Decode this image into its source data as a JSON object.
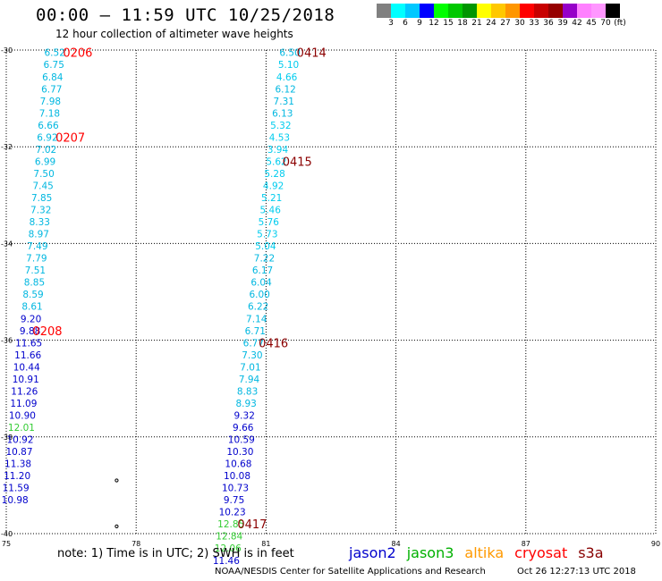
{
  "title": "00:00 – 11:59 UTC 10/25/2018",
  "subtitle": "12 hour collection of altimeter wave heights",
  "note": "note:  1) Time is in UTC;  2) SWH is in feet",
  "credit": "NOAA/NESDIS Center for Satellite Applications and Research",
  "timestamp": "Oct 26 12:27:13 UTC 2018",
  "colorbar": {
    "colors": [
      "#808080",
      "#00ffff",
      "#00c8ff",
      "#0000ff",
      "#00ff00",
      "#00c800",
      "#009600",
      "#ffff00",
      "#ffc800",
      "#ff9600",
      "#ff0000",
      "#c80000",
      "#960000",
      "#9600c8",
      "#ff80ff",
      "#ff96ff",
      "#000000"
    ],
    "labels": [
      "3",
      "6",
      "9",
      "12",
      "15",
      "18",
      "21",
      "24",
      "27",
      "30",
      "33",
      "36",
      "39",
      "42",
      "45",
      "70",
      "(ft)"
    ]
  },
  "legend": [
    {
      "name": "jason2",
      "color": "#0000cc"
    },
    {
      "name": "jason3",
      "color": "#00b000"
    },
    {
      "name": "altika",
      "color": "#ff9900"
    },
    {
      "name": "cryosat",
      "color": "#ff0000"
    },
    {
      "name": "s3a",
      "color": "#880000"
    }
  ],
  "chart_data": {
    "type": "scatter",
    "xlim": [
      75,
      90
    ],
    "ylim": [
      -40,
      -30
    ],
    "x_ticks": [
      "75",
      "78",
      "81",
      "84",
      "87",
      "90"
    ],
    "y_ticks": [
      "-30",
      "-32",
      "-34",
      "-36",
      "-38",
      "-40"
    ],
    "grid": true,
    "unit": "ft",
    "series": [
      {
        "name": "cryosat",
        "color": "#009acd",
        "points": [
          {
            "x": 76.12,
            "y": -30.05,
            "v": "6.52",
            "c": "#00b7e0"
          },
          {
            "x": 76.1,
            "y": -30.3,
            "v": "6.75",
            "c": "#00b7e0"
          },
          {
            "x": 76.07,
            "y": -30.55,
            "v": "6.84",
            "c": "#00b7e0"
          },
          {
            "x": 76.05,
            "y": -30.8,
            "v": "6.77",
            "c": "#00b7e0"
          },
          {
            "x": 76.02,
            "y": -31.05,
            "v": "7.98",
            "c": "#00b7e0"
          },
          {
            "x": 76.0,
            "y": -31.3,
            "v": "7.18",
            "c": "#00b7e0"
          },
          {
            "x": 75.97,
            "y": -31.55,
            "v": "6.66",
            "c": "#00b7e0"
          },
          {
            "x": 75.95,
            "y": -31.8,
            "v": "6.92",
            "c": "#00b7e0"
          },
          {
            "x": 75.92,
            "y": -32.05,
            "v": "7.02",
            "c": "#00b7e0"
          },
          {
            "x": 75.9,
            "y": -32.3,
            "v": "6.99",
            "c": "#00b7e0"
          },
          {
            "x": 75.87,
            "y": -32.55,
            "v": "7.50",
            "c": "#00b7e0"
          },
          {
            "x": 75.85,
            "y": -32.8,
            "v": "7.45",
            "c": "#00b7e0"
          },
          {
            "x": 75.82,
            "y": -33.05,
            "v": "7.85",
            "c": "#00b7e0"
          },
          {
            "x": 75.8,
            "y": -33.3,
            "v": "7.32",
            "c": "#00b7e0"
          },
          {
            "x": 75.77,
            "y": -33.55,
            "v": "8.33",
            "c": "#00b7e0"
          },
          {
            "x": 75.75,
            "y": -33.8,
            "v": "8.97",
            "c": "#00b7e0"
          },
          {
            "x": 75.72,
            "y": -34.05,
            "v": "7.49",
            "c": "#00b7e0"
          },
          {
            "x": 75.7,
            "y": -34.3,
            "v": "7.79",
            "c": "#00b7e0"
          },
          {
            "x": 75.67,
            "y": -34.55,
            "v": "7.51",
            "c": "#00b7e0"
          },
          {
            "x": 75.65,
            "y": -34.8,
            "v": "8.85",
            "c": "#00b7e0"
          },
          {
            "x": 75.62,
            "y": -35.05,
            "v": "8.59",
            "c": "#00b7e0"
          },
          {
            "x": 75.6,
            "y": -35.3,
            "v": "8.61",
            "c": "#00b7e0"
          },
          {
            "x": 75.57,
            "y": -35.55,
            "v": "9.20",
            "c": "#0000cc"
          },
          {
            "x": 75.55,
            "y": -35.8,
            "v": "9.88",
            "c": "#0000cc"
          },
          {
            "x": 75.52,
            "y": -36.05,
            "v": "11.65",
            "c": "#0000cc"
          },
          {
            "x": 75.5,
            "y": -36.3,
            "v": "11.66",
            "c": "#0000cc"
          },
          {
            "x": 75.47,
            "y": -36.55,
            "v": "10.44",
            "c": "#0000cc"
          },
          {
            "x": 75.45,
            "y": -36.8,
            "v": "10.91",
            "c": "#0000cc"
          },
          {
            "x": 75.42,
            "y": -37.05,
            "v": "11.26",
            "c": "#0000cc"
          },
          {
            "x": 75.4,
            "y": -37.3,
            "v": "11.09",
            "c": "#0000cc"
          },
          {
            "x": 75.37,
            "y": -37.55,
            "v": "10.90",
            "c": "#0000cc"
          },
          {
            "x": 75.35,
            "y": -37.8,
            "v": "12.01",
            "c": "#33cc33"
          },
          {
            "x": 75.32,
            "y": -38.05,
            "v": "10.92",
            "c": "#0000cc"
          },
          {
            "x": 75.3,
            "y": -38.3,
            "v": "10.87",
            "c": "#0000cc"
          },
          {
            "x": 75.27,
            "y": -38.55,
            "v": "11.38",
            "c": "#0000cc"
          },
          {
            "x": 75.25,
            "y": -38.8,
            "v": "11.20",
            "c": "#0000cc"
          },
          {
            "x": 75.22,
            "y": -39.05,
            "v": "11.59",
            "c": "#0000cc"
          },
          {
            "x": 75.2,
            "y": -39.3,
            "v": "10.98",
            "c": "#0000cc"
          }
        ]
      },
      {
        "name": "s3a",
        "color": "#009acd",
        "points": [
          {
            "x": 81.55,
            "y": -30.05,
            "v": "6.50",
            "c": "#00b7e0"
          },
          {
            "x": 81.52,
            "y": -30.3,
            "v": "5.10",
            "c": "#00ccee"
          },
          {
            "x": 81.48,
            "y": -30.55,
            "v": "4.66",
            "c": "#00ccee"
          },
          {
            "x": 81.45,
            "y": -30.8,
            "v": "6.12",
            "c": "#00b7e0"
          },
          {
            "x": 81.41,
            "y": -31.05,
            "v": "7.31",
            "c": "#00b7e0"
          },
          {
            "x": 81.38,
            "y": -31.3,
            "v": "6.13",
            "c": "#00b7e0"
          },
          {
            "x": 81.34,
            "y": -31.55,
            "v": "5.32",
            "c": "#00ccee"
          },
          {
            "x": 81.31,
            "y": -31.8,
            "v": "4.53",
            "c": "#00ccee"
          },
          {
            "x": 81.27,
            "y": -32.05,
            "v": "3.94",
            "c": "#00ccee"
          },
          {
            "x": 81.24,
            "y": -32.3,
            "v": "5.62",
            "c": "#00ccee"
          },
          {
            "x": 81.2,
            "y": -32.55,
            "v": "5.28",
            "c": "#00ccee"
          },
          {
            "x": 81.17,
            "y": -32.8,
            "v": "4.92",
            "c": "#00ccee"
          },
          {
            "x": 81.13,
            "y": -33.05,
            "v": "5.21",
            "c": "#00ccee"
          },
          {
            "x": 81.1,
            "y": -33.3,
            "v": "5.46",
            "c": "#00ccee"
          },
          {
            "x": 81.06,
            "y": -33.55,
            "v": "5.76",
            "c": "#00ccee"
          },
          {
            "x": 81.03,
            "y": -33.8,
            "v": "5.73",
            "c": "#00ccee"
          },
          {
            "x": 80.99,
            "y": -34.05,
            "v": "5.04",
            "c": "#00ccee"
          },
          {
            "x": 80.96,
            "y": -34.3,
            "v": "7.22",
            "c": "#00b7e0"
          },
          {
            "x": 80.92,
            "y": -34.55,
            "v": "6.17",
            "c": "#00b7e0"
          },
          {
            "x": 80.89,
            "y": -34.8,
            "v": "6.04",
            "c": "#00b7e0"
          },
          {
            "x": 80.85,
            "y": -35.05,
            "v": "6.00",
            "c": "#00b7e0"
          },
          {
            "x": 80.82,
            "y": -35.3,
            "v": "6.22",
            "c": "#00b7e0"
          },
          {
            "x": 80.78,
            "y": -35.55,
            "v": "7.14",
            "c": "#00b7e0"
          },
          {
            "x": 80.75,
            "y": -35.8,
            "v": "6.71",
            "c": "#00b7e0"
          },
          {
            "x": 80.71,
            "y": -36.05,
            "v": "6.77",
            "c": "#00b7e0"
          },
          {
            "x": 80.68,
            "y": -36.3,
            "v": "7.30",
            "c": "#00b7e0"
          },
          {
            "x": 80.64,
            "y": -36.55,
            "v": "7.01",
            "c": "#00b7e0"
          },
          {
            "x": 80.61,
            "y": -36.8,
            "v": "7.94",
            "c": "#00b7e0"
          },
          {
            "x": 80.57,
            "y": -37.05,
            "v": "8.83",
            "c": "#00b7e0"
          },
          {
            "x": 80.54,
            "y": -37.3,
            "v": "8.93",
            "c": "#00b7e0"
          },
          {
            "x": 80.5,
            "y": -37.55,
            "v": "9.32",
            "c": "#0000cc"
          },
          {
            "x": 80.47,
            "y": -37.8,
            "v": "9.66",
            "c": "#0000cc"
          },
          {
            "x": 80.43,
            "y": -38.05,
            "v": "10.59",
            "c": "#0000cc"
          },
          {
            "x": 80.4,
            "y": -38.3,
            "v": "10.30",
            "c": "#0000cc"
          },
          {
            "x": 80.36,
            "y": -38.55,
            "v": "10.68",
            "c": "#0000cc"
          },
          {
            "x": 80.33,
            "y": -38.8,
            "v": "10.08",
            "c": "#0000cc"
          },
          {
            "x": 80.29,
            "y": -39.05,
            "v": "10.73",
            "c": "#0000cc"
          },
          {
            "x": 80.26,
            "y": -39.3,
            "v": "9.75",
            "c": "#0000cc"
          },
          {
            "x": 80.22,
            "y": -39.55,
            "v": "10.23",
            "c": "#0000cc"
          },
          {
            "x": 80.19,
            "y": -39.8,
            "v": "12.85",
            "c": "#33cc33"
          },
          {
            "x": 80.15,
            "y": -40.05,
            "v": "12.84",
            "c": "#33cc33"
          },
          {
            "x": 80.12,
            "y": -40.3,
            "v": "12.06",
            "c": "#33cc33"
          },
          {
            "x": 80.08,
            "y": -40.55,
            "v": "11.46",
            "c": "#0000cc"
          }
        ]
      }
    ],
    "annotations": [
      {
        "text": "0206",
        "x": 76.65,
        "y": -30.05,
        "color": "#ff0000"
      },
      {
        "text": "0207",
        "x": 76.48,
        "y": -31.8,
        "color": "#ff0000"
      },
      {
        "text": "0208",
        "x": 75.95,
        "y": -35.8,
        "color": "#ff0000"
      },
      {
        "text": "0414",
        "x": 82.05,
        "y": -30.05,
        "color": "#8b0000"
      },
      {
        "text": "0415",
        "x": 81.72,
        "y": -32.3,
        "color": "#8b0000"
      },
      {
        "text": "0416",
        "x": 81.17,
        "y": -36.05,
        "color": "#8b0000"
      },
      {
        "text": "0417",
        "x": 80.68,
        "y": -39.8,
        "color": "#8b0000"
      }
    ],
    "markers": [
      {
        "x": 77.55,
        "y": -38.9
      },
      {
        "x": 77.55,
        "y": -39.85
      }
    ]
  }
}
